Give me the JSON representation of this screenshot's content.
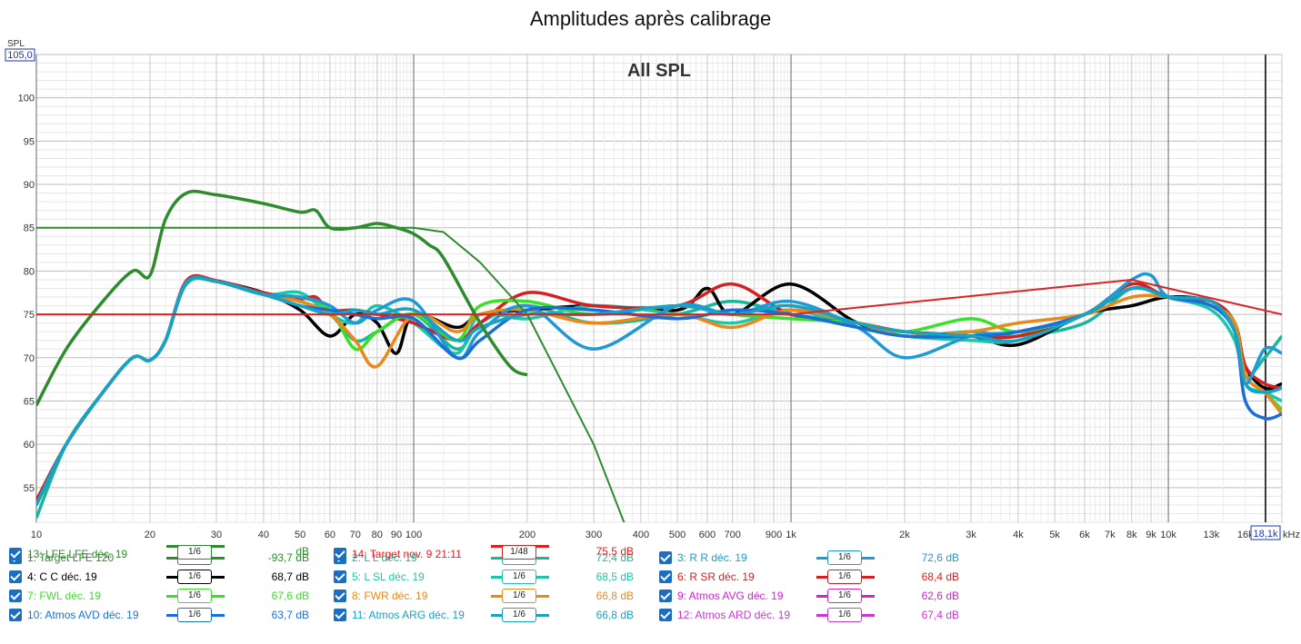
{
  "chart_data": {
    "type": "line",
    "title": "Amplitudes après calibrage",
    "annotation": "All SPL",
    "ylabel": "SPL",
    "ylim": [
      51,
      105
    ],
    "y_ticks": [
      55,
      60,
      65,
      70,
      75,
      80,
      85,
      90,
      95,
      100
    ],
    "y_top_label": "105,0",
    "xlim": [
      10,
      20000
    ],
    "x_scale": "log",
    "x_unit": "kHz",
    "x_cursor_label": "18,1k",
    "x_cursor": 18100,
    "x_ticks": [
      {
        "v": 10,
        "l": "10"
      },
      {
        "v": 20,
        "l": "20"
      },
      {
        "v": 30,
        "l": "30"
      },
      {
        "v": 40,
        "l": "40"
      },
      {
        "v": 50,
        "l": "50"
      },
      {
        "v": 60,
        "l": "60"
      },
      {
        "v": 70,
        "l": "70"
      },
      {
        "v": 80,
        "l": "80"
      },
      {
        "v": 90,
        "l": "90"
      },
      {
        "v": 100,
        "l": "100"
      },
      {
        "v": 200,
        "l": "200"
      },
      {
        "v": 300,
        "l": "300"
      },
      {
        "v": 400,
        "l": "400"
      },
      {
        "v": 500,
        "l": "500"
      },
      {
        "v": 600,
        "l": "600"
      },
      {
        "v": 700,
        "l": "700"
      },
      {
        "v": 900,
        "l": "900"
      },
      {
        "v": 1000,
        "l": "1k"
      },
      {
        "v": 2000,
        "l": "2k"
      },
      {
        "v": 3000,
        "l": "3k"
      },
      {
        "v": 4000,
        "l": "4k"
      },
      {
        "v": 5000,
        "l": "5k"
      },
      {
        "v": 6000,
        "l": "6k"
      },
      {
        "v": 7000,
        "l": "7k"
      },
      {
        "v": 8000,
        "l": "8k"
      },
      {
        "v": 9000,
        "l": "9k"
      },
      {
        "v": 10000,
        "l": "10k"
      },
      {
        "v": 13000,
        "l": "13k"
      },
      {
        "v": 16000,
        "l": "16k"
      }
    ],
    "grid": true,
    "series": [
      {
        "name": "1: Target LFE 120",
        "color": "#2e8b2e",
        "smoothing": "1/48",
        "value": "-93,7 dB",
        "width": 2,
        "x": [
          10,
          100,
          120,
          150,
          200,
          300,
          400
        ],
        "y": [
          85,
          85,
          84.5,
          81,
          75,
          60,
          46
        ]
      },
      {
        "name": "13: LFE LFE déc. 19",
        "color": "#2e8b2e",
        "smoothing": "1/6",
        "value": "dB",
        "width": 3.5,
        "x": [
          10,
          12,
          15,
          18,
          20,
          22,
          25,
          30,
          40,
          50,
          55,
          60,
          70,
          80,
          90,
          100,
          110,
          120,
          150,
          180,
          200
        ],
        "y": [
          64.5,
          71,
          76.5,
          80,
          79.5,
          86,
          89,
          88.8,
          87.8,
          86.8,
          87,
          85,
          85,
          85.5,
          85,
          84.3,
          83,
          81.5,
          74,
          69,
          68
        ]
      },
      {
        "name": "14: Target nov. 9 21:11",
        "color": "#e02020",
        "smoothing": "1/48",
        "value": "75,5 dB",
        "width": 2,
        "x": [
          10,
          100,
          1000,
          8000,
          10000,
          20000
        ],
        "y": [
          75,
          75,
          75,
          79,
          78,
          75
        ]
      },
      {
        "name": "2: L L déc. 19",
        "color": "#17b89a",
        "smoothing": "1/6",
        "value": "72,4 dB",
        "width": 3.5,
        "x": [
          10,
          12,
          15,
          18,
          20,
          22,
          25,
          30,
          40,
          50,
          60,
          70,
          80,
          100,
          130,
          150,
          200,
          300,
          500,
          700,
          1000,
          1500,
          2000,
          3000,
          4000,
          6000,
          8000,
          10000,
          13000,
          15000,
          16000,
          18000,
          20000
        ],
        "y": [
          51.5,
          60,
          66,
          70,
          69.7,
          72,
          78.5,
          78.8,
          77.3,
          76.5,
          75,
          72,
          73,
          75,
          71,
          74,
          76,
          74,
          75,
          76.5,
          75,
          74,
          72.5,
          73,
          72.5,
          74,
          78,
          77,
          76.5,
          74,
          68,
          70,
          72.5
        ]
      },
      {
        "name": "4: C C déc. 19",
        "color": "#000000",
        "smoothing": "1/6",
        "value": "68,7 dB",
        "width": 3.5,
        "x": [
          10,
          12,
          15,
          18,
          20,
          22,
          25,
          30,
          40,
          50,
          60,
          70,
          80,
          90,
          100,
          130,
          150,
          200,
          300,
          500,
          600,
          700,
          1000,
          1500,
          2000,
          3000,
          4000,
          6000,
          8000,
          10000,
          13000,
          15000,
          16000,
          18000,
          20000
        ],
        "y": [
          53.5,
          60,
          66,
          70,
          69.7,
          72,
          78.7,
          78.8,
          77.5,
          75.5,
          72.5,
          75,
          74,
          70.5,
          75,
          73.5,
          75,
          75.5,
          76,
          75.5,
          78,
          75,
          78.5,
          74,
          73,
          72.5,
          71.5,
          75,
          76,
          77,
          76.5,
          74,
          69,
          66.5,
          67
        ]
      },
      {
        "name": "5: L SL déc. 19",
        "color": "#1dc6a9",
        "smoothing": "1/6",
        "value": "68,5 dB",
        "width": 3.5,
        "x": [
          10,
          12,
          15,
          18,
          20,
          22,
          25,
          30,
          40,
          50,
          60,
          70,
          80,
          100,
          130,
          150,
          200,
          300,
          500,
          700,
          1000,
          1500,
          2000,
          3000,
          4000,
          6000,
          8000,
          10000,
          13000,
          15000,
          16000,
          18000,
          20000
        ],
        "y": [
          53,
          60,
          66,
          70,
          69.7,
          72,
          78.6,
          78.8,
          77.3,
          77.5,
          75,
          74,
          76,
          74,
          70.5,
          75,
          74.5,
          76,
          75,
          74,
          75.5,
          73.5,
          72.5,
          72,
          72,
          75,
          78,
          77,
          75.5,
          72,
          67,
          66,
          65
        ]
      },
      {
        "name": "6: R SR déc. 19",
        "color": "#d42020",
        "smoothing": "1/6",
        "value": "68,4 dB",
        "width": 3.5,
        "x": [
          10,
          12,
          15,
          18,
          20,
          22,
          25,
          30,
          40,
          50,
          55,
          60,
          70,
          80,
          100,
          130,
          150,
          200,
          300,
          500,
          700,
          1000,
          1500,
          2000,
          3000,
          4000,
          6000,
          8000,
          10000,
          13000,
          15000,
          16000,
          18000,
          20000
        ],
        "y": [
          53.5,
          60,
          66,
          70,
          69.7,
          72,
          78.9,
          78.9,
          77.5,
          76.8,
          77,
          75.5,
          75.5,
          75,
          74,
          72,
          74,
          77.5,
          76,
          76,
          78.5,
          75,
          74,
          73,
          72.5,
          72.5,
          75,
          78.5,
          77,
          76.5,
          74,
          69,
          67,
          66.5
        ]
      },
      {
        "name": "7: FWL déc. 19",
        "color": "#39e02a",
        "smoothing": "1/6",
        "value": "67,6 dB",
        "width": 3.5,
        "x": [
          10,
          12,
          15,
          18,
          20,
          22,
          25,
          30,
          40,
          50,
          60,
          70,
          80,
          100,
          130,
          150,
          200,
          300,
          500,
          700,
          1000,
          1500,
          2000,
          3000,
          4000,
          6000,
          8000,
          10000,
          13000,
          15000,
          16000,
          18000,
          20000
        ],
        "y": [
          53,
          60,
          66,
          70,
          69.7,
          72,
          78.7,
          78.8,
          77.3,
          77,
          75.5,
          71,
          73,
          75,
          72,
          76,
          76.5,
          75,
          76,
          75,
          74.5,
          74,
          73,
          74.5,
          73,
          75,
          78,
          77,
          76,
          74,
          68,
          66,
          64
        ]
      },
      {
        "name": "8: FWR déc. 19",
        "color": "#e8891c",
        "smoothing": "1/6",
        "value": "66,8 dB",
        "width": 3.5,
        "x": [
          10,
          12,
          15,
          18,
          20,
          22,
          25,
          30,
          40,
          50,
          60,
          70,
          80,
          100,
          130,
          150,
          200,
          300,
          500,
          700,
          1000,
          1500,
          2000,
          3000,
          4000,
          6000,
          8000,
          10000,
          13000,
          15000,
          16000,
          18000,
          20000
        ],
        "y": [
          53,
          60,
          66,
          70,
          69.7,
          72,
          78.7,
          78.8,
          77.3,
          76.5,
          75,
          72,
          69,
          75,
          73,
          75,
          75.5,
          74,
          75,
          73.5,
          75.5,
          74,
          72.5,
          73,
          74,
          75,
          77,
          77,
          76,
          74,
          68,
          66,
          63.5
        ]
      },
      {
        "name": "3: R R déc. 19",
        "color": "#1f9ad6",
        "smoothing": "1/6",
        "value": "72,6 dB",
        "width": 3.5,
        "x": [
          10,
          12,
          15,
          18,
          20,
          22,
          25,
          30,
          40,
          50,
          60,
          70,
          80,
          100,
          130,
          150,
          200,
          300,
          500,
          700,
          1000,
          1500,
          2000,
          3000,
          4000,
          6000,
          8000,
          9000,
          10000,
          13000,
          15000,
          16000,
          18000,
          20000
        ],
        "y": [
          53,
          60,
          66,
          70,
          69.7,
          72,
          78.7,
          78.8,
          77.3,
          77,
          76,
          74,
          75.5,
          76.5,
          70,
          73,
          76,
          71,
          76,
          75,
          76.5,
          73.5,
          70,
          72.5,
          73,
          75,
          79,
          79.5,
          77,
          76,
          73,
          67,
          71,
          70.5
        ]
      },
      {
        "name": "10: Atmos AVD déc. 19",
        "color": "#1a6fd6",
        "smoothing": "1/6",
        "value": "63,7 dB",
        "width": 3.5,
        "x": [
          10,
          12,
          15,
          18,
          20,
          22,
          25,
          30,
          40,
          50,
          60,
          70,
          80,
          100,
          130,
          150,
          200,
          300,
          500,
          700,
          1000,
          1500,
          2000,
          3000,
          4000,
          6000,
          8000,
          10000,
          13000,
          15000,
          16000,
          18000,
          20000
        ],
        "y": [
          53,
          60,
          66,
          70,
          69.7,
          72,
          78.7,
          78.8,
          77.3,
          76,
          75.5,
          75,
          74.5,
          74.5,
          70,
          72,
          75.5,
          75.5,
          74.5,
          75.5,
          75,
          73.5,
          72.5,
          72.5,
          73,
          75,
          78,
          77,
          76,
          73,
          65,
          63,
          63.5
        ]
      },
      {
        "name": "11: Atmos ARG déc. 19",
        "color": "#18a2c4",
        "smoothing": "1/6",
        "value": "66,8 dB",
        "width": 3.5,
        "x": [
          10,
          12,
          15,
          18,
          20,
          22,
          25,
          30,
          40,
          50,
          60,
          70,
          80,
          100,
          130,
          150,
          200,
          300,
          500,
          700,
          1000,
          1500,
          2000,
          3000,
          4000,
          6000,
          8000,
          10000,
          13000,
          15000,
          16000,
          18000,
          20000
        ],
        "y": [
          53,
          60,
          66,
          70,
          69.7,
          72,
          78.7,
          78.8,
          77.3,
          76,
          75,
          75.5,
          75,
          75.5,
          72,
          73.5,
          75,
          75,
          76,
          75,
          76,
          74,
          73,
          72.5,
          72,
          75,
          78,
          77,
          76.5,
          73,
          67,
          66,
          66.5
        ]
      },
      {
        "name": "9: Atmos AVG déc. 19",
        "color": "#d422d4",
        "smoothing": "1/6",
        "value": "62,6 dB",
        "width": 3.5,
        "x": [
          10,
          12,
          15,
          18,
          20,
          22,
          25,
          30,
          40,
          50,
          60,
          70,
          80,
          100,
          130,
          150,
          200,
          300,
          500,
          700,
          1000,
          1500,
          2000,
          3000,
          4000,
          6000,
          8000,
          10000,
          13000,
          14000,
          15000,
          16000,
          18000,
          20000
        ],
        "y": [
          53.5,
          60,
          66,
          70,
          69.7,
          72,
          79,
          79,
          77.5,
          76,
          76.5,
          75.5,
          76,
          74.5,
          72,
          73,
          73,
          75,
          72,
          77,
          76,
          74,
          72.5,
          72,
          72,
          75,
          78,
          77,
          72.5,
          76,
          73,
          66,
          62,
          59.5
        ]
      },
      {
        "name": "12: Atmos ARD déc. 19",
        "color": "#cf36cf",
        "smoothing": "1/6",
        "value": "67,4 dB",
        "width": 3.5,
        "x": [
          10,
          12,
          15,
          18,
          20,
          22,
          25,
          30,
          40,
          50,
          60,
          70,
          80,
          100,
          130,
          150,
          200,
          300,
          500,
          700,
          1000,
          1500,
          2000,
          3000,
          4000,
          6000,
          8000,
          10000,
          13000,
          15000,
          16000,
          18000,
          20000
        ],
        "y": [
          53.5,
          60,
          66,
          70,
          69.7,
          72,
          79,
          78.9,
          77.5,
          76.5,
          77,
          75.5,
          75.5,
          74,
          71.5,
          75,
          76,
          74.5,
          76,
          78,
          75.5,
          74,
          72.5,
          72,
          72,
          75,
          78.5,
          77,
          76.5,
          74,
          68,
          67.5,
          67
        ]
      }
    ]
  },
  "legend": {
    "items": [
      {
        "label": "1: Target LFE 120",
        "color": "#2e8b2e",
        "smooth": "1/48",
        "value": "-93,7 dB"
      },
      {
        "label": "2: L L déc. 19",
        "color": "#17b89a",
        "smooth": "1/6",
        "value": "72,4 dB"
      },
      {
        "label": "3: R R déc. 19",
        "color": "#1f9ad6",
        "smooth": "1/6",
        "value": "72,6 dB"
      },
      {
        "label": "4: C C déc. 19",
        "color": "#000000",
        "smooth": "1/6",
        "value": "68,7 dB"
      },
      {
        "label": "5: L SL déc. 19",
        "color": "#1dc6a9",
        "smooth": "1/6",
        "value": "68,5 dB"
      },
      {
        "label": "6: R SR déc. 19",
        "color": "#d42020",
        "smooth": "1/6",
        "value": "68,4 dB"
      },
      {
        "label": "7: FWL déc. 19",
        "color": "#39e02a",
        "smooth": "1/6",
        "value": "67,6 dB"
      },
      {
        "label": "8: FWR déc. 19",
        "color": "#e8891c",
        "smooth": "1/6",
        "value": "66,8 dB"
      },
      {
        "label": "9: Atmos AVG déc. 19",
        "color": "#d422d4",
        "smooth": "1/6",
        "value": "62,6 dB"
      },
      {
        "label": "10: Atmos AVD déc. 19",
        "color": "#1a6fd6",
        "smooth": "1/6",
        "value": "63,7 dB"
      },
      {
        "label": "11: Atmos ARG déc. 19",
        "color": "#18a2c4",
        "smooth": "1/6",
        "value": "66,8 dB"
      },
      {
        "label": "12: Atmos ARD déc. 19",
        "color": "#cf36cf",
        "smooth": "1/6",
        "value": "67,4 dB"
      },
      {
        "label": "13: LFE LFE déc. 19",
        "color": "#2e8b2e",
        "smooth": "1/6",
        "value": "dB"
      },
      {
        "label": "14: Target nov. 9 21:11",
        "color": "#e02020",
        "smooth": "1/48",
        "value": "75,5 dB"
      }
    ]
  }
}
